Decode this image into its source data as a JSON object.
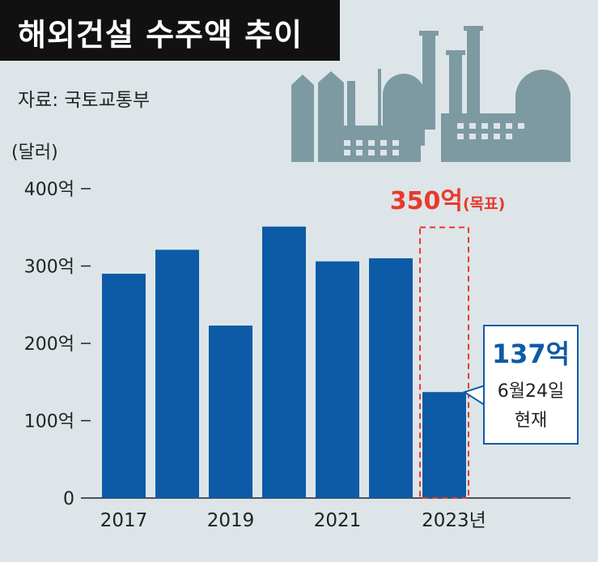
{
  "title": "해외건설 수주액 추이",
  "source": "자료: 국토교통부",
  "unit": "(달러)",
  "colors": {
    "bar": "#0d5ba6",
    "target": "#e8392b",
    "background": "#dde5e9",
    "factory": "#7d9aa3",
    "title_bg": "#111111"
  },
  "icon": "factory-icon",
  "chart_data": {
    "type": "bar",
    "categories": [
      "2017",
      "2018",
      "2019",
      "2020",
      "2021",
      "2022",
      "2023"
    ],
    "values": [
      290,
      321,
      223,
      351,
      306,
      310,
      137
    ],
    "x_tick_labels": [
      "2017",
      "2019",
      "2021",
      "2023년"
    ],
    "x_tick_categories": [
      "2017",
      "2019",
      "2021",
      "2023"
    ],
    "y_tick_labels": [
      "0",
      "100억",
      "200억",
      "300억",
      "400억"
    ],
    "y_ticks": [
      0,
      100,
      200,
      300,
      400
    ],
    "ylim": [
      0,
      400
    ],
    "target": {
      "category": "2023",
      "value": 350,
      "label_value": "350억",
      "label_note": "(목표)"
    },
    "current_callout": {
      "value_label": "137억",
      "date_label": "6월24일",
      "status_label": "현재"
    }
  }
}
